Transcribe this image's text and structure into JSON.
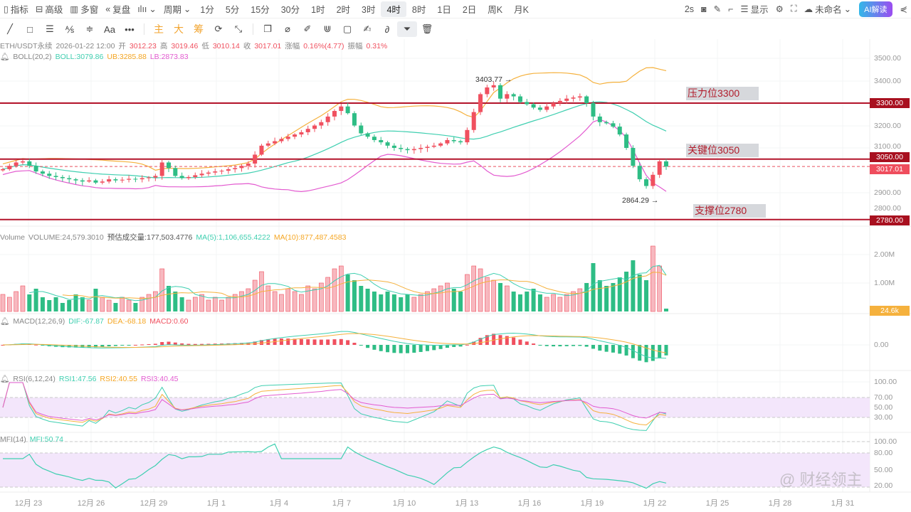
{
  "toolbar": {
    "left": [
      "指标",
      "高级",
      "多窗",
      "复盘"
    ],
    "period_label": "周期",
    "intervals": [
      "1分",
      "5分",
      "15分",
      "30分",
      "1时",
      "2时",
      "3时",
      "4时",
      "8时",
      "1日",
      "2日",
      "周K",
      "月K"
    ],
    "active_interval": "4时",
    "refresh": "2s",
    "display_label": "显示",
    "layout_name": "未命名",
    "ai_label": "AI解读"
  },
  "drawbar": {
    "main": "主",
    "big": "大",
    "chip": "筹"
  },
  "legend": {
    "symbol": "ETH/USDT永续",
    "time": "2026-01-22 12:00",
    "open_l": "开",
    "open": "3012.23",
    "high_l": "高",
    "high": "3019.46",
    "low_l": "低",
    "low": "3010.14",
    "close_l": "收",
    "close": "3017.01",
    "chg_l": "涨幅",
    "chg": "0.16%(4.77)",
    "amp_l": "振幅",
    "amp": "0.31%",
    "boll": "BOLL(20,2)",
    "boll_mid": "BOLL:3079.86",
    "boll_ub": "UB:3285.88",
    "boll_lb": "LB:2873.83",
    "vol": "Volume",
    "vol_v": "VOLUME:24,579.3010",
    "vol_est": "预估成交量:177,503.4776",
    "vol_ma5": "MA(5):1,106,655.4222",
    "vol_ma10": "MA(10):877,487.4583",
    "macd": "MACD(12,26,9)",
    "dif": "DIF:-67.87",
    "dea": "DEA:-68.18",
    "macd_v": "MACD:0.60",
    "rsi": "RSI(6,12,24)",
    "rsi1": "RSI1:47.56",
    "rsi2": "RSI2:40.55",
    "rsi3": "RSI3:40.45",
    "mfi": "MFI(14)",
    "mfi_v": "MFI:50.74"
  },
  "axes": {
    "price": [
      "3500.00",
      "3400.00",
      "3200.00",
      "3100.00",
      "2900.00",
      "2800.00"
    ],
    "volume": [
      "2.00M",
      "1.00M"
    ],
    "macd": [
      "0.00"
    ],
    "rsi": [
      "100.00",
      "70.00",
      "50.00",
      "30.00"
    ],
    "mfi": [
      "100.00",
      "80.00",
      "50.00",
      "20.00"
    ],
    "dates": [
      "12月 23",
      "12月 26",
      "12月 29",
      "1月 1",
      "1月 4",
      "1月 7",
      "1月 10",
      "1月 13",
      "1月 16",
      "1月 19",
      "1月 22",
      "1月 25",
      "1月 28",
      "1月 31"
    ]
  },
  "levels": {
    "resistance": {
      "label": "压力位3300",
      "value": "3300.00",
      "price": 3300
    },
    "key": {
      "label": "关键位3050",
      "value": "3050.00",
      "price": 3050
    },
    "support": {
      "label": "支撑位2780",
      "value": "2780.00",
      "price": 2780
    },
    "last": {
      "value": "3017.01",
      "price": 3017.01
    },
    "vol_last": "24.6k"
  },
  "annotations": {
    "high": "3403.77",
    "low": "2864.29"
  },
  "watermark": "@ 财经领主",
  "colors": {
    "up": "#f0505f",
    "down": "#2ebd85",
    "boll": "#3fcfb0",
    "ub": "#f5b13d",
    "lb": "#e35bd0",
    "level": "#b3132a"
  },
  "chart_data": {
    "type": "candlestick",
    "symbol": "ETH/USDT",
    "interval": "8h (approx.)",
    "closes": [
      3005,
      3020,
      3035,
      3040,
      3020,
      2995,
      2985,
      2975,
      2970,
      2965,
      2960,
      2955,
      2950,
      2955,
      2945,
      2950,
      2960,
      2955,
      2958,
      2962,
      2960,
      2965,
      2968,
      2975,
      3035,
      3010,
      2975,
      2965,
      2970,
      2978,
      2985,
      2990,
      2995,
      2998,
      3005,
      3010,
      3020,
      3030,
      3070,
      3110,
      3120,
      3130,
      3140,
      3150,
      3160,
      3170,
      3185,
      3200,
      3215,
      3240,
      3265,
      3285,
      3255,
      3200,
      3165,
      3150,
      3135,
      3125,
      3110,
      3100,
      3095,
      3090,
      3095,
      3100,
      3105,
      3110,
      3120,
      3135,
      3130,
      3125,
      3180,
      3260,
      3340,
      3370,
      3380,
      3320,
      3340,
      3330,
      3305,
      3295,
      3280,
      3270,
      3285,
      3300,
      3310,
      3320,
      3325,
      3330,
      3300,
      3240,
      3215,
      3210,
      3195,
      3160,
      3100,
      3020,
      2960,
      2930,
      2980,
      3040,
      3017
    ],
    "volumes_m": [
      0.6,
      0.5,
      0.7,
      0.9,
      0.6,
      0.8,
      0.5,
      0.4,
      0.5,
      0.3,
      0.4,
      0.6,
      0.5,
      0.4,
      0.8,
      0.5,
      0.4,
      0.3,
      0.5,
      0.4,
      0.3,
      0.5,
      0.6,
      0.7,
      1.5,
      0.9,
      0.7,
      0.5,
      0.4,
      0.5,
      0.6,
      0.4,
      0.5,
      0.4,
      0.5,
      0.6,
      0.7,
      0.8,
      1.1,
      1.4,
      0.9,
      0.7,
      0.6,
      0.8,
      0.7,
      0.6,
      0.9,
      0.8,
      1.0,
      1.2,
      1.5,
      1.6,
      1.3,
      1.1,
      0.9,
      0.8,
      0.7,
      0.6,
      0.7,
      0.6,
      0.5,
      0.6,
      0.5,
      0.6,
      0.7,
      0.8,
      0.9,
      1.0,
      0.8,
      0.7,
      1.3,
      1.6,
      1.5,
      1.2,
      1.1,
      1.0,
      0.9,
      0.7,
      0.6,
      0.7,
      0.8,
      0.6,
      0.5,
      0.6,
      0.5,
      0.6,
      0.7,
      0.8,
      1.0,
      1.7,
      1.1,
      0.9,
      1.0,
      1.2,
      1.4,
      1.8,
      1.3,
      1.1,
      2.3,
      1.6,
      0.1
    ],
    "price_range": [
      2760,
      3520
    ]
  }
}
